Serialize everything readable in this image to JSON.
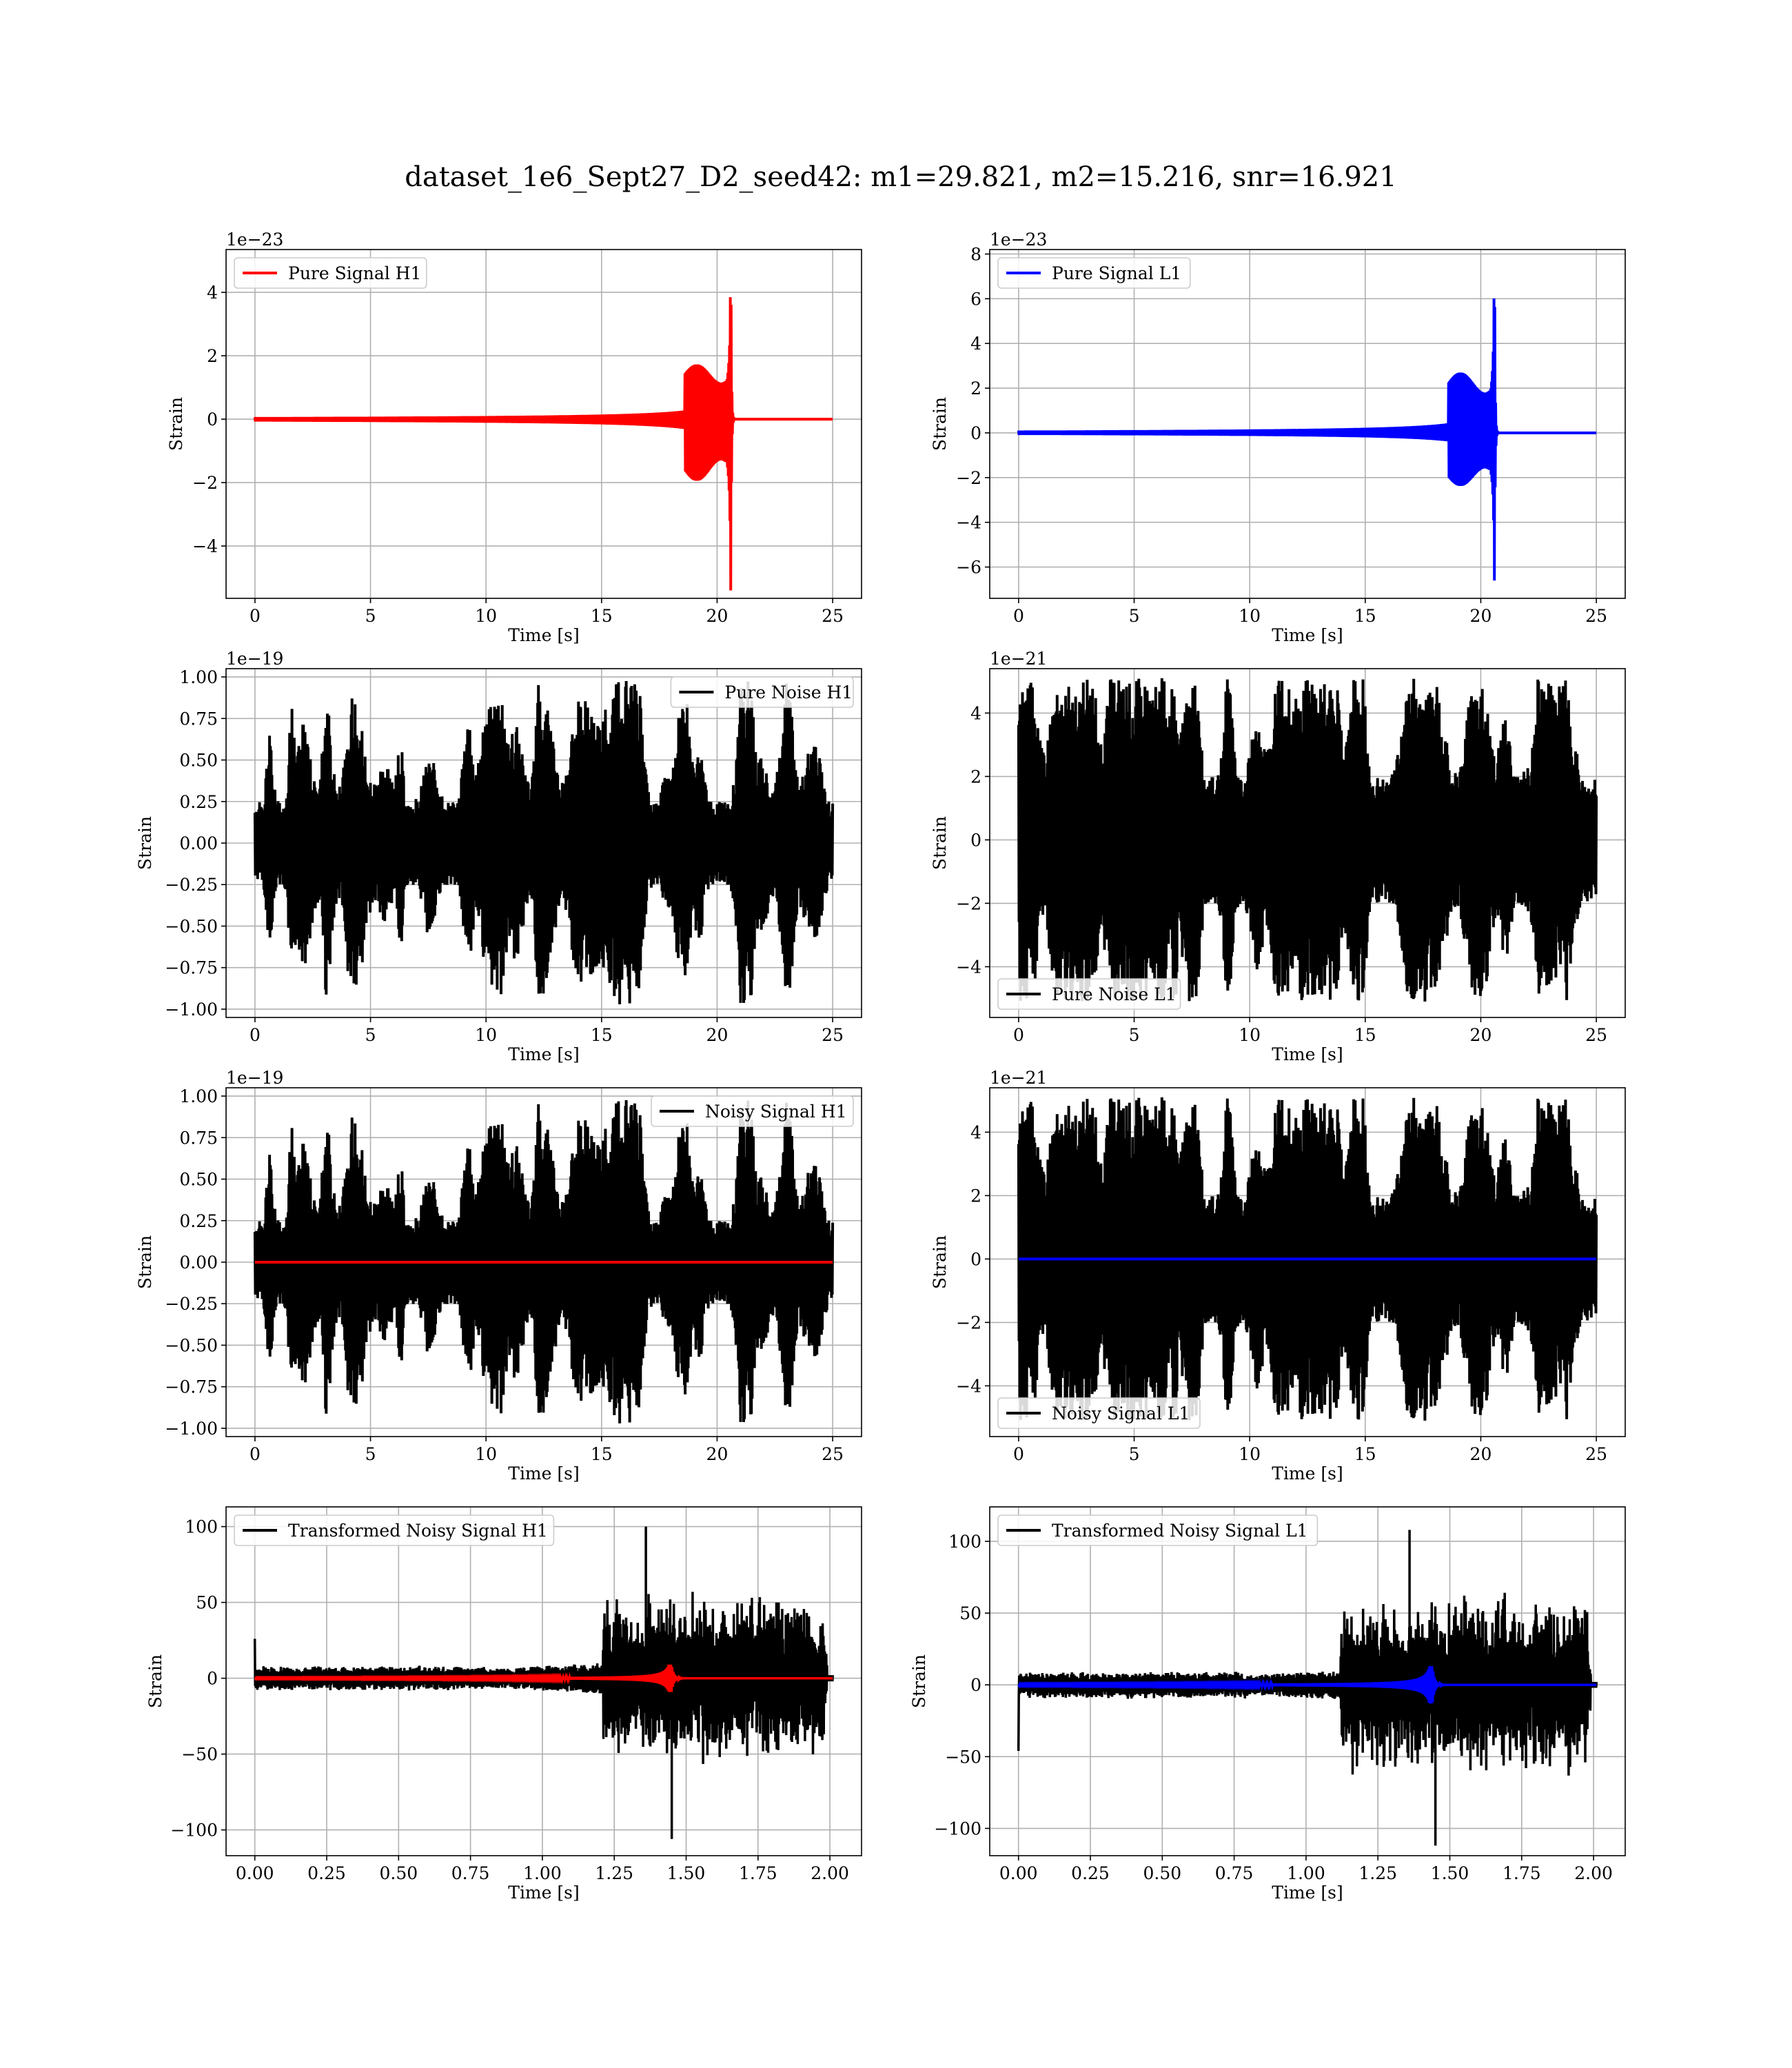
{
  "figure": {
    "suptitle": "dataset_1e6_Sept27_D2_seed42: m1=29.821, m2=15.216, snr=16.921"
  },
  "chart_data": [
    {
      "id": "p0",
      "type": "line",
      "row": 0,
      "col": 0,
      "xlabel": "Time [s]",
      "ylabel": "Strain",
      "offset_text": "1e−23",
      "xlim": [
        -1.25,
        26.25
      ],
      "ylim": [
        -5.65,
        5.35
      ],
      "xticks": [
        0,
        5,
        10,
        15,
        20,
        25
      ],
      "xtick_labels": [
        "0",
        "5",
        "10",
        "15",
        "20",
        "25"
      ],
      "yticks": [
        -4,
        -2,
        0,
        2,
        4
      ],
      "ytick_labels": [
        "−4",
        "−2",
        "0",
        "2",
        "4"
      ],
      "legend": {
        "loc": "upper left",
        "entries": [
          {
            "label": "Pure Signal H1",
            "color": "#ff0000"
          }
        ]
      },
      "series": [
        {
          "name": "Pure Signal H1",
          "color": "#ff0000",
          "kind": "chirp",
          "t_end": 25,
          "merger": 20.6,
          "peak_pos": 4.8,
          "peak_neg": -5.4
        }
      ],
      "grid": true
    },
    {
      "id": "p1",
      "type": "line",
      "row": 0,
      "col": 1,
      "xlabel": "Time [s]",
      "ylabel": "Strain",
      "offset_text": "1e−23",
      "xlim": [
        -1.25,
        26.25
      ],
      "ylim": [
        -7.4,
        8.2
      ],
      "xticks": [
        0,
        5,
        10,
        15,
        20,
        25
      ],
      "xtick_labels": [
        "0",
        "5",
        "10",
        "15",
        "20",
        "25"
      ],
      "yticks": [
        -6,
        -4,
        -2,
        0,
        2,
        4,
        6,
        8
      ],
      "ytick_labels": [
        "−6",
        "−4",
        "−2",
        "0",
        "2",
        "4",
        "6",
        "8"
      ],
      "legend": {
        "loc": "upper left",
        "entries": [
          {
            "label": "Pure Signal L1",
            "color": "#0000ff"
          }
        ]
      },
      "series": [
        {
          "name": "Pure Signal L1",
          "color": "#0000ff",
          "kind": "chirp",
          "t_end": 25,
          "merger": 20.6,
          "peak_pos": 7.5,
          "peak_neg": -6.6
        }
      ],
      "grid": true
    },
    {
      "id": "p2",
      "type": "line",
      "row": 1,
      "col": 0,
      "xlabel": "Time [s]",
      "ylabel": "Strain",
      "offset_text": "1e−19",
      "xlim": [
        -1.25,
        26.25
      ],
      "ylim": [
        -1.05,
        1.05
      ],
      "xticks": [
        0,
        5,
        10,
        15,
        20,
        25
      ],
      "xtick_labels": [
        "0",
        "5",
        "10",
        "15",
        "20",
        "25"
      ],
      "yticks": [
        -1.0,
        -0.75,
        -0.5,
        -0.25,
        0.0,
        0.25,
        0.5,
        0.75,
        1.0
      ],
      "ytick_labels": [
        "−1.00",
        "−0.75",
        "−0.50",
        "−0.25",
        "0.00",
        "0.25",
        "0.50",
        "0.75",
        "1.00"
      ],
      "legend": {
        "loc": "upper right",
        "entries": [
          {
            "label": "Pure Noise H1",
            "color": "#000000"
          }
        ]
      },
      "series": [
        {
          "name": "Pure Noise H1",
          "color": "#000000",
          "kind": "noise",
          "t_end": 25,
          "amplitude": 0.45,
          "peak": 0.98,
          "seed": 11
        }
      ],
      "grid": true
    },
    {
      "id": "p3",
      "type": "line",
      "row": 1,
      "col": 1,
      "xlabel": "Time [s]",
      "ylabel": "Strain",
      "offset_text": "1e−21",
      "xlim": [
        -1.25,
        26.25
      ],
      "ylim": [
        -5.6,
        5.4
      ],
      "xticks": [
        0,
        5,
        10,
        15,
        20,
        25
      ],
      "xtick_labels": [
        "0",
        "5",
        "10",
        "15",
        "20",
        "25"
      ],
      "yticks": [
        -4,
        -2,
        0,
        2,
        4
      ],
      "ytick_labels": [
        "−4",
        "−2",
        "0",
        "2",
        "4"
      ],
      "legend": {
        "loc": "lower left",
        "entries": [
          {
            "label": "Pure Noise L1",
            "color": "#000000"
          }
        ]
      },
      "series": [
        {
          "name": "Pure Noise L1",
          "color": "#000000",
          "kind": "noise",
          "t_end": 25,
          "amplitude": 3.6,
          "peak": 5.1,
          "seed": 23
        }
      ],
      "grid": true
    },
    {
      "id": "p4",
      "type": "line",
      "row": 2,
      "col": 0,
      "xlabel": "Time [s]",
      "ylabel": "Strain",
      "offset_text": "1e−19",
      "xlim": [
        -1.25,
        26.25
      ],
      "ylim": [
        -1.05,
        1.05
      ],
      "xticks": [
        0,
        5,
        10,
        15,
        20,
        25
      ],
      "xtick_labels": [
        "0",
        "5",
        "10",
        "15",
        "20",
        "25"
      ],
      "yticks": [
        -1.0,
        -0.75,
        -0.5,
        -0.25,
        0.0,
        0.25,
        0.5,
        0.75,
        1.0
      ],
      "ytick_labels": [
        "−1.00",
        "−0.75",
        "−0.50",
        "−0.25",
        "0.00",
        "0.25",
        "0.50",
        "0.75",
        "1.00"
      ],
      "legend": {
        "loc": "upper right",
        "entries": [
          {
            "label": "Noisy Signal H1",
            "color": "#000000"
          }
        ]
      },
      "series": [
        {
          "name": "Noisy Signal H1",
          "color": "#000000",
          "kind": "noise",
          "t_end": 25,
          "amplitude": 0.45,
          "peak": 0.98,
          "seed": 11
        },
        {
          "name": "",
          "color": "#ff0000",
          "kind": "flat",
          "t_end": 25,
          "value": 0
        }
      ],
      "grid": true
    },
    {
      "id": "p5",
      "type": "line",
      "row": 2,
      "col": 1,
      "xlabel": "Time [s]",
      "ylabel": "Strain",
      "offset_text": "1e−21",
      "xlim": [
        -1.25,
        26.25
      ],
      "ylim": [
        -5.6,
        5.4
      ],
      "xticks": [
        0,
        5,
        10,
        15,
        20,
        25
      ],
      "xtick_labels": [
        "0",
        "5",
        "10",
        "15",
        "20",
        "25"
      ],
      "yticks": [
        -4,
        -2,
        0,
        2,
        4
      ],
      "ytick_labels": [
        "−4",
        "−2",
        "0",
        "2",
        "4"
      ],
      "legend": {
        "loc": "lower left",
        "entries": [
          {
            "label": "Noisy Signal L1",
            "color": "#000000"
          }
        ]
      },
      "series": [
        {
          "name": "Noisy Signal L1",
          "color": "#000000",
          "kind": "noise",
          "t_end": 25,
          "amplitude": 3.6,
          "peak": 5.1,
          "seed": 23
        },
        {
          "name": "",
          "color": "#0000ff",
          "kind": "flat",
          "t_end": 25,
          "value": 0
        }
      ],
      "grid": true
    },
    {
      "id": "p6",
      "type": "line",
      "row": 3,
      "col": 0,
      "xlabel": "Time [s]",
      "ylabel": "Strain",
      "offset_text": "",
      "xlim": [
        -0.1,
        2.11
      ],
      "ylim": [
        -117,
        113
      ],
      "xticks": [
        0,
        0.25,
        0.5,
        0.75,
        1.0,
        1.25,
        1.5,
        1.75,
        2.0
      ],
      "xtick_labels": [
        "0.00",
        "0.25",
        "0.50",
        "0.75",
        "1.00",
        "1.25",
        "1.50",
        "1.75",
        "2.00"
      ],
      "yticks": [
        -100,
        -50,
        0,
        50,
        100
      ],
      "ytick_labels": [
        "−100",
        "−50",
        "0",
        "50",
        "100"
      ],
      "legend": {
        "loc": "upper left",
        "entries": [
          {
            "label": "Transformed Noisy Signal H1",
            "color": "#000000"
          }
        ]
      },
      "series": [
        {
          "name": "Transformed Noisy Signal H1",
          "color": "#000000",
          "kind": "whitened",
          "t_end": 2.01,
          "onset": 1.21,
          "low": 6,
          "high": 45,
          "peak": 100,
          "min": -106,
          "spike": 26,
          "seed": 37
        },
        {
          "name": "",
          "color": "#ff0000",
          "kind": "small_chirp",
          "t_end": 2.01,
          "merger": 1.45,
          "peak": 9
        }
      ],
      "grid": true
    },
    {
      "id": "p7",
      "type": "line",
      "row": 3,
      "col": 1,
      "xlabel": "Time [s]",
      "ylabel": "Strain",
      "offset_text": "",
      "xlim": [
        -0.1,
        2.11
      ],
      "ylim": [
        -119,
        124
      ],
      "xticks": [
        0,
        0.25,
        0.5,
        0.75,
        1.0,
        1.25,
        1.5,
        1.75,
        2.0
      ],
      "xtick_labels": [
        "0.00",
        "0.25",
        "0.50",
        "0.75",
        "1.00",
        "1.25",
        "1.50",
        "1.75",
        "2.00"
      ],
      "yticks": [
        -100,
        -50,
        0,
        50,
        100
      ],
      "ytick_labels": [
        "−100",
        "−50",
        "0",
        "50",
        "100"
      ],
      "legend": {
        "loc": "upper left",
        "entries": [
          {
            "label": "Transformed Noisy Signal L1",
            "color": "#000000"
          }
        ]
      },
      "series": [
        {
          "name": "Transformed Noisy Signal L1",
          "color": "#000000",
          "kind": "whitened",
          "t_end": 2.01,
          "onset": 1.12,
          "low": 7,
          "high": 50,
          "peak": 108,
          "min": -112,
          "spike": -46,
          "seed": 41
        },
        {
          "name": "",
          "color": "#0000ff",
          "kind": "small_chirp",
          "t_end": 2.01,
          "merger": 1.44,
          "peak": 13
        }
      ],
      "grid": true
    }
  ]
}
